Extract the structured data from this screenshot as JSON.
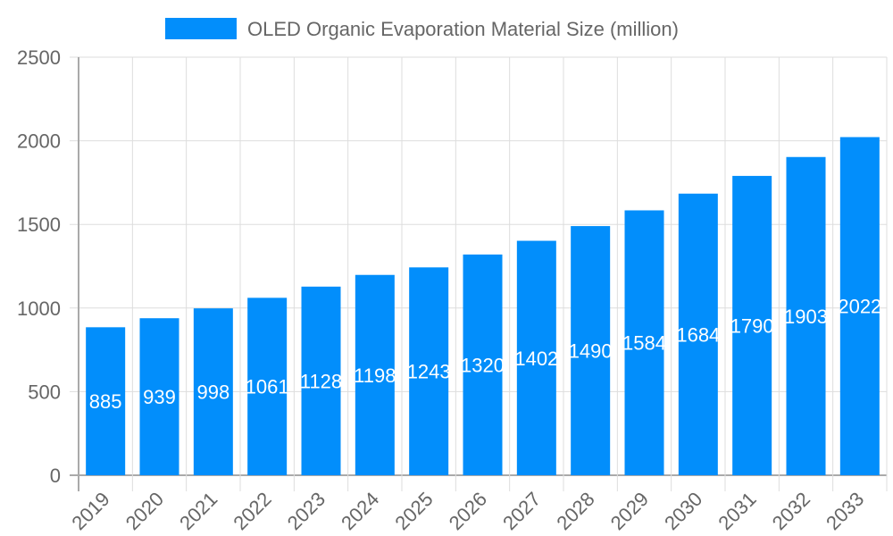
{
  "chart_data": {
    "type": "bar",
    "categories": [
      "2019",
      "2020",
      "2021",
      "2022",
      "2023",
      "2024",
      "2025",
      "2026",
      "2027",
      "2028",
      "2029",
      "2030",
      "2031",
      "2032",
      "2033"
    ],
    "series": [
      {
        "name": "OLED Organic Evaporation Material Size (million)",
        "values": [
          885,
          939,
          998,
          1061,
          1128,
          1198,
          1243,
          1320,
          1402,
          1490,
          1584,
          1684,
          1790,
          1903,
          2022
        ]
      }
    ],
    "ylim": [
      0,
      2500
    ],
    "yticks": [
      0,
      500,
      1000,
      1500,
      2000,
      2500
    ],
    "grid": true,
    "legend": "top",
    "data_labels": true,
    "colors": {
      "bar": "#028EFB",
      "label": "#ffffff",
      "text": "#666666",
      "grid": "#dddddd",
      "axis": "#aaaaaa"
    }
  }
}
